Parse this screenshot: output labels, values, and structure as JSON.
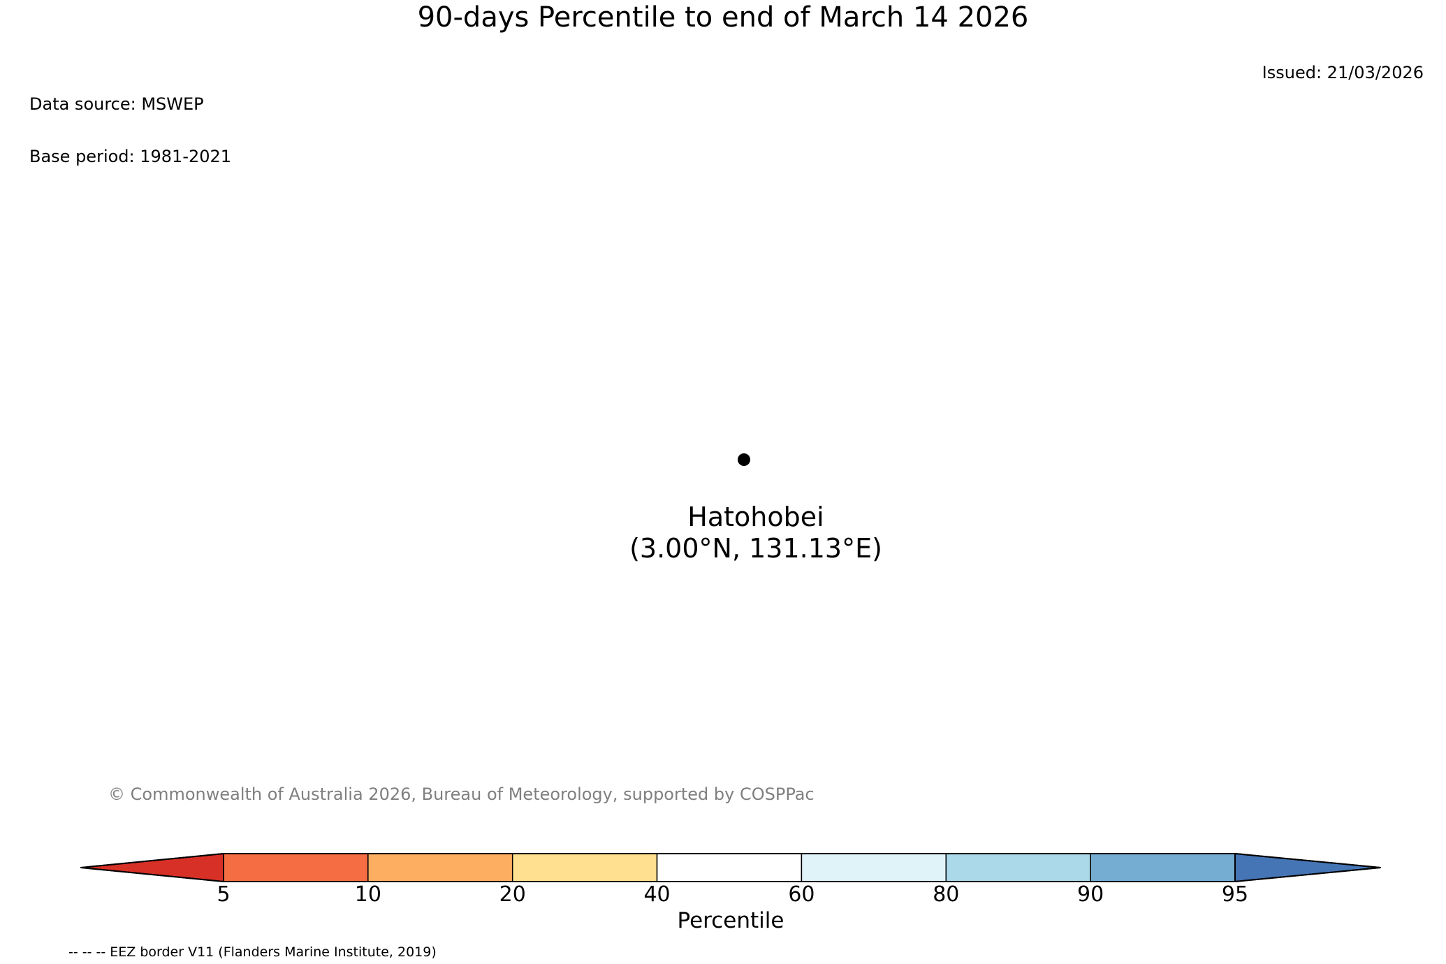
{
  "title": "90-days Percentile to end of March 14 2026",
  "meta": {
    "data_source": "Data source: MSWEP",
    "base_period": "Base period: 1981-2021",
    "issued": "Issued: 21/03/2026"
  },
  "station": {
    "name": "Hatohobei",
    "coordinates": "(3.00°N, 131.13°E)",
    "marker": "filled-black-circle"
  },
  "copyright": "© Commonwealth of Australia 2026, Bureau of Meteorology, supported by COSPPac",
  "colorbar": {
    "label": "Percentile",
    "ticks": [
      "5",
      "10",
      "20",
      "40",
      "60",
      "80",
      "90",
      "95"
    ],
    "left_arrow_color": "#d73027",
    "right_arrow_color": "#4575b4",
    "segment_colors": [
      "#f46d43",
      "#fdae61",
      "#fee090",
      "#ffffff",
      "#e0f3f8",
      "#abd9e9",
      "#74add1"
    ],
    "outline_color": "#000000"
  },
  "footnote": "-- -- -- EEZ border V11 (Flanders Marine Institute, 2019)"
}
